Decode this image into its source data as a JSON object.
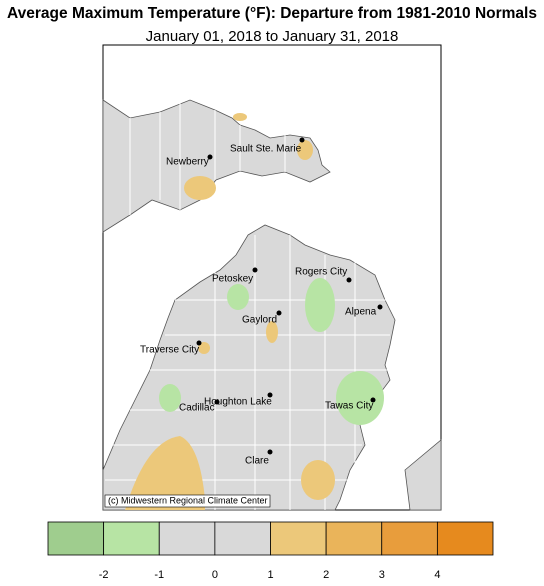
{
  "header": {
    "title": "Average Maximum Temperature (°F): Departure from 1981-2010 Normals",
    "subtitle": "January 01, 2018 to January 31, 2018"
  },
  "map": {
    "cities": [
      "Newberry",
      "Sault Ste. Marie",
      "Petoskey",
      "Rogers City",
      "Alpena",
      "Gaylord",
      "Traverse City",
      "Houghton Lake",
      "Cadillac",
      "Tawas City",
      "Clare"
    ],
    "credit": "(c) Midwestern Regional Climate Center"
  },
  "legend": {
    "colors": [
      "#9fcd8e",
      "#b7e4a4",
      "#d9d9d9",
      "#d9d9d9",
      "#ecc87a",
      "#eab45a",
      "#e89d3c",
      "#e68a1e"
    ],
    "ticks": [
      -2,
      -1,
      0,
      1,
      2,
      3,
      4
    ]
  }
}
